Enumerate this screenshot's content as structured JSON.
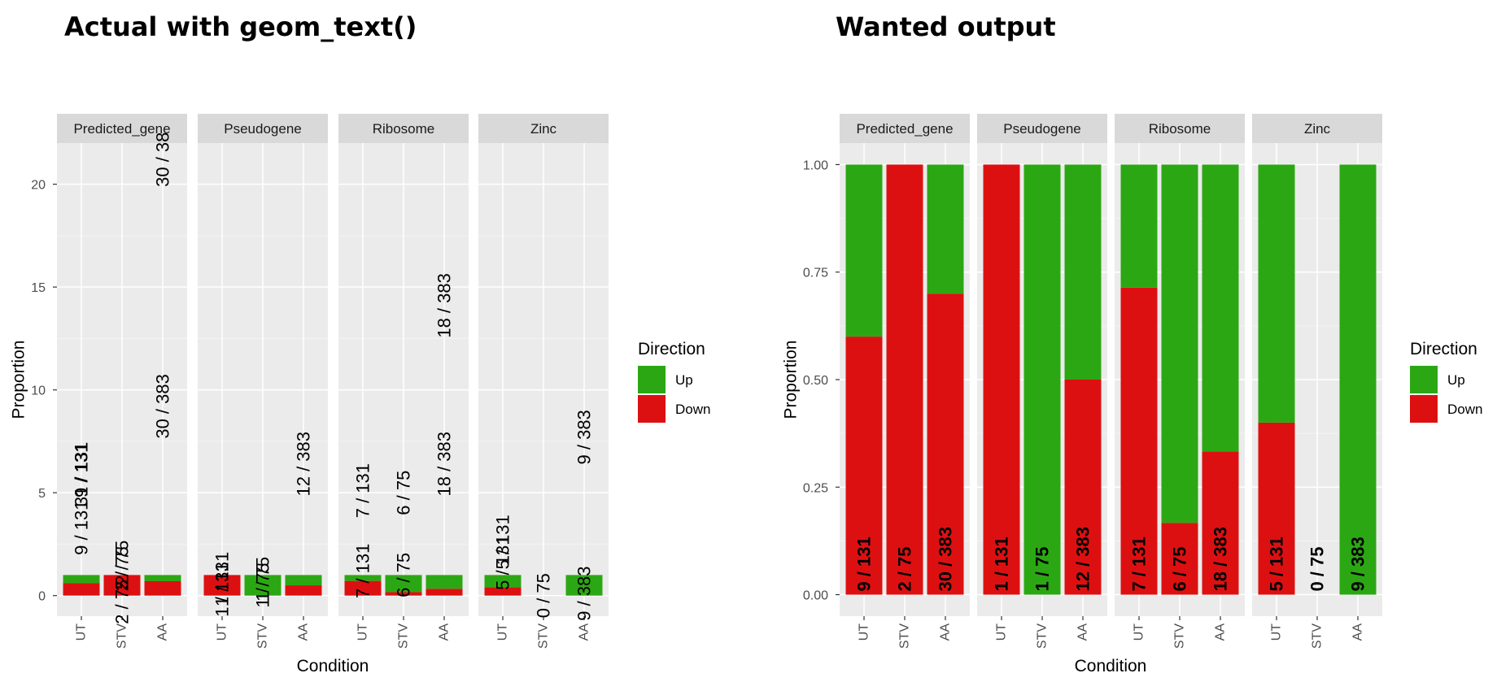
{
  "titles": {
    "left": "Actual with geom_text()",
    "right": "Wanted output"
  },
  "colors": {
    "up": "#2ca714",
    "down": "#dd1011",
    "panel": "#ebebeb",
    "strip": "#d9d9d9",
    "grid_major": "#ffffff",
    "grid_minor": "#f4f4f4",
    "axis_text": "#4d4d4d"
  },
  "chart_data": [
    {
      "id": "actual",
      "type": "bar",
      "stacked": true,
      "title": "Actual with geom_text()",
      "xlabel": "Condition",
      "ylabel": "Proportion",
      "ylim": [
        -1,
        22
      ],
      "yticks": [
        0,
        5,
        10,
        15,
        20
      ],
      "ytick_labels": [
        "0",
        "5",
        "10",
        "15",
        "20"
      ],
      "grid": true,
      "legend": {
        "title": "Direction",
        "position": "right",
        "entries": [
          {
            "name": "Up",
            "color": "#2ca714"
          },
          {
            "name": "Down",
            "color": "#dd1011"
          }
        ]
      },
      "categories": [
        "UT",
        "STV",
        "AA"
      ],
      "facets": [
        {
          "name": "Predicted_gene",
          "bars": [
            {
              "down": 0.6,
              "up": 0.4
            },
            {
              "down": 1.0,
              "up": 0.0
            },
            {
              "down": 0.7,
              "up": 0.3
            }
          ]
        },
        {
          "name": "Pseudogene",
          "bars": [
            {
              "down": 1.0,
              "up": 0.0
            },
            {
              "down": 0.0,
              "up": 1.0
            },
            {
              "down": 0.5,
              "up": 0.5
            }
          ]
        },
        {
          "name": "Ribosome",
          "bars": [
            {
              "down": 0.714,
              "up": 0.286
            },
            {
              "down": 0.167,
              "up": 0.833
            },
            {
              "down": 0.333,
              "up": 0.667
            }
          ]
        },
        {
          "name": "Zinc",
          "bars": [
            {
              "down": 0.4,
              "up": 0.6
            },
            {
              "down": 0.0,
              "up": 0.0
            },
            {
              "down": 0.0,
              "up": 1.0
            }
          ]
        }
      ],
      "text_labels": [
        {
          "facet": 0,
          "x": "UT",
          "y": 3.3,
          "text": "9 / 131"
        },
        {
          "facet": 0,
          "x": "UT",
          "y": 5.9,
          "text": "31 / 131"
        },
        {
          "facet": 0,
          "x": "UT",
          "y": 6.1,
          "text": "9 / 131"
        },
        {
          "facet": 0,
          "x": "STV",
          "y": 1.3,
          "text": "2 / 75"
        },
        {
          "facet": 0,
          "x": "STV",
          "y": -0.3,
          "text": "2 / 75"
        },
        {
          "facet": 0,
          "x": "STV",
          "y": 1.6,
          "text": "2 / 75"
        },
        {
          "facet": 0,
          "x": "AA",
          "y": 9.2,
          "text": "30 / 383"
        },
        {
          "facet": 0,
          "x": "AA",
          "y": 21.2,
          "text": "30 / 38"
        },
        {
          "facet": 1,
          "x": "UT",
          "y": 0.8,
          "text": "1 / 131"
        },
        {
          "facet": 1,
          "x": "UT",
          "y": 0.3,
          "text": "1 / 131"
        },
        {
          "facet": 1,
          "x": "STV",
          "y": 0.8,
          "text": "1 / 75"
        },
        {
          "facet": 1,
          "x": "STV",
          "y": 0.5,
          "text": "1 / 75"
        },
        {
          "facet": 1,
          "x": "AA",
          "y": 6.4,
          "text": "12 / 383"
        },
        {
          "facet": 2,
          "x": "UT",
          "y": 5.1,
          "text": "7 / 131"
        },
        {
          "facet": 2,
          "x": "UT",
          "y": 1.2,
          "text": "7 / 131"
        },
        {
          "facet": 2,
          "x": "STV",
          "y": 5.0,
          "text": "6 / 75"
        },
        {
          "facet": 2,
          "x": "STV",
          "y": 1.0,
          "text": "6 / 75"
        },
        {
          "facet": 2,
          "x": "AA",
          "y": 14.1,
          "text": "18 / 383"
        },
        {
          "facet": 2,
          "x": "AA",
          "y": 6.4,
          "text": "18 / 383"
        },
        {
          "facet": 3,
          "x": "UT",
          "y": 2.6,
          "text": "5 / 131"
        },
        {
          "facet": 3,
          "x": "UT",
          "y": 1.6,
          "text": "5 / 131"
        },
        {
          "facet": 3,
          "x": "STV",
          "y": 0.0,
          "text": "0 / 75"
        },
        {
          "facet": 3,
          "x": "AA",
          "y": 7.7,
          "text": "9 / 383"
        },
        {
          "facet": 3,
          "x": "AA",
          "y": 0.1,
          "text": "9 / 383"
        }
      ]
    },
    {
      "id": "wanted",
      "type": "bar",
      "stacked": true,
      "title": "Wanted output",
      "xlabel": "Condition",
      "ylabel": "Proportion",
      "ylim": [
        -0.05,
        1.05
      ],
      "yticks": [
        0,
        0.25,
        0.5,
        0.75,
        1.0
      ],
      "ytick_labels": [
        "0.00",
        "0.25",
        "0.50",
        "0.75",
        "1.00"
      ],
      "grid": true,
      "legend": {
        "title": "Direction",
        "position": "right",
        "entries": [
          {
            "name": "Up",
            "color": "#2ca714"
          },
          {
            "name": "Down",
            "color": "#dd1011"
          }
        ]
      },
      "categories": [
        "UT",
        "STV",
        "AA"
      ],
      "facets": [
        {
          "name": "Predicted_gene",
          "bars": [
            {
              "down": 0.6,
              "up": 0.4,
              "label": "9 / 131"
            },
            {
              "down": 1.0,
              "up": 0.0,
              "label": "2 / 75"
            },
            {
              "down": 0.7,
              "up": 0.3,
              "label": "30 / 383"
            }
          ]
        },
        {
          "name": "Pseudogene",
          "bars": [
            {
              "down": 1.0,
              "up": 0.0,
              "label": "1 / 131"
            },
            {
              "down": 0.0,
              "up": 1.0,
              "label": "1 / 75"
            },
            {
              "down": 0.5,
              "up": 0.5,
              "label": "12 / 383"
            }
          ]
        },
        {
          "name": "Ribosome",
          "bars": [
            {
              "down": 0.714,
              "up": 0.286,
              "label": "7 / 131"
            },
            {
              "down": 0.167,
              "up": 0.833,
              "label": "6 / 75"
            },
            {
              "down": 0.333,
              "up": 0.667,
              "label": "18 / 383"
            }
          ]
        },
        {
          "name": "Zinc",
          "bars": [
            {
              "down": 0.4,
              "up": 0.6,
              "label": "5 / 131"
            },
            {
              "down": 0.0,
              "up": 0.0,
              "label": "0 / 75"
            },
            {
              "down": 0.0,
              "up": 1.0,
              "label": "9 / 383"
            }
          ]
        }
      ]
    }
  ]
}
